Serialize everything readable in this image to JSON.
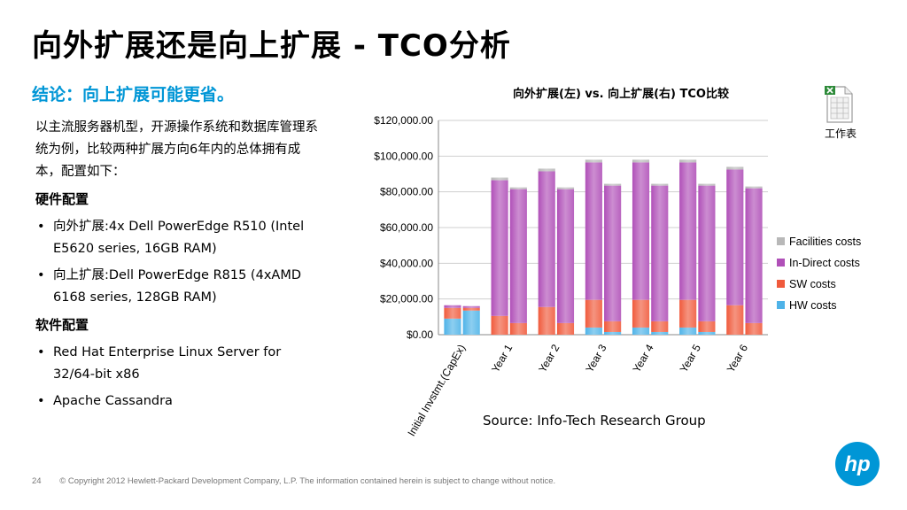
{
  "slide": {
    "title": "向外扩展还是向上扩展 - TCO分析",
    "subtitle": "结论：向上扩展可能更省。",
    "intro": "以主流服务器机型，开源操作系统和数据库管理系统为例，比较两种扩展方向6年内的总体拥有成本，配置如下：",
    "hardware_heading": "硬件配置",
    "hardware_items": [
      "向外扩展:4x Dell PowerEdge R510 (Intel E5620 series, 16GB RAM)",
      "向上扩展:Dell PowerEdge R815 (4xAMD 6168 series, 128GB RAM)"
    ],
    "software_heading": "软件配置",
    "software_items": [
      "Red Hat Enterprise Linux Server for 32/64-bit x86",
      "Apache Cassandra"
    ],
    "source": "Source: Info-Tech Research Group",
    "excel_label": "工作表",
    "page_number": "24",
    "copyright": "© Copyright 2012 Hewlett-Packard Development Company, L.P.  The information contained herein is subject to change without notice.",
    "logo_text": "hp"
  },
  "colors": {
    "accent": "#0096d6",
    "hw": "#4fb3e8",
    "sw": "#f05a3c",
    "indirect": "#b050b8",
    "facilities": "#b8b8b8"
  },
  "chart_data": {
    "type": "bar",
    "stacked": true,
    "title": "向外扩展(左) vs. 向上扩展(右) TCO比较",
    "categories": [
      "Initial Invstmt.(CapEx)",
      "Year 1",
      "Year 2",
      "Year 3",
      "Year 4",
      "Year 5",
      "Year 6"
    ],
    "bars_per_category": [
      "left",
      "right"
    ],
    "ylim": [
      0,
      120000
    ],
    "yticks": [
      "$0.00",
      "$20,000.00",
      "$40,000.00",
      "$60,000.00",
      "$80,000.00",
      "$100,000.00",
      "$120,000.00"
    ],
    "legend_position": "right",
    "series": [
      {
        "name": "HW costs",
        "left": [
          9000,
          0,
          0,
          4000,
          4000,
          4000,
          0
        ],
        "right": [
          13500,
          0,
          0,
          1500,
          1500,
          1500,
          0
        ]
      },
      {
        "name": "SW costs",
        "left": [
          6000,
          10500,
          15500,
          15500,
          15500,
          15500,
          16500
        ],
        "right": [
          1500,
          6500,
          6500,
          6000,
          6000,
          6000,
          6500
        ]
      },
      {
        "name": "In-Direct costs",
        "left": [
          1500,
          76000,
          76000,
          77000,
          77000,
          77000,
          76000
        ],
        "right": [
          1000,
          75000,
          75000,
          76000,
          76000,
          76000,
          75500
        ]
      },
      {
        "name": "Facilities costs",
        "left": [
          0,
          1500,
          1500,
          1500,
          1500,
          1500,
          1500
        ],
        "right": [
          0,
          1000,
          1000,
          1000,
          1000,
          1000,
          1000
        ]
      }
    ]
  }
}
